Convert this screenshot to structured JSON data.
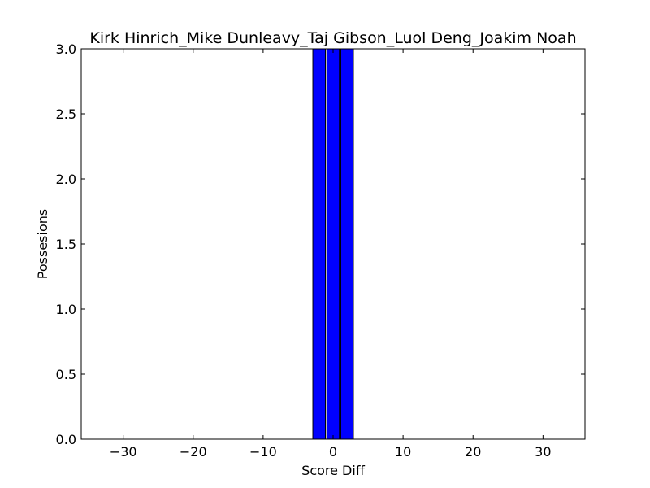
{
  "chart_data": {
    "type": "bar",
    "title": "Kirk Hinrich_Mike Dunleavy_Taj Gibson_Luol Deng_Joakim Noah",
    "xlabel": "Score Diff",
    "ylabel": "Possesions",
    "xlim": [
      -36,
      36
    ],
    "ylim": [
      0,
      3.0
    ],
    "bar_width": 1.8,
    "bar_color": "#0000ff",
    "edge_color": "#000000",
    "grid": false,
    "x_ticks": [
      -30,
      -20,
      -10,
      0,
      10,
      20,
      30
    ],
    "x_tick_labels": [
      "−30",
      "−20",
      "−10",
      "0",
      "10",
      "20",
      "30"
    ],
    "y_ticks": [
      0.0,
      0.5,
      1.0,
      1.5,
      2.0,
      2.5,
      3.0
    ],
    "y_tick_labels": [
      "0.0",
      "0.5",
      "1.0",
      "1.5",
      "2.0",
      "2.5",
      "3.0"
    ],
    "bars": [
      {
        "x": -35,
        "value": 0
      },
      {
        "x": -34,
        "value": 0
      },
      {
        "x": -33,
        "value": 0
      },
      {
        "x": -32,
        "value": 0
      },
      {
        "x": -31,
        "value": 0
      },
      {
        "x": -30,
        "value": 0
      },
      {
        "x": -29,
        "value": 0
      },
      {
        "x": -28,
        "value": 0
      },
      {
        "x": -27,
        "value": 0
      },
      {
        "x": -26,
        "value": 0
      },
      {
        "x": -25,
        "value": 0
      },
      {
        "x": -24,
        "value": 0
      },
      {
        "x": -23,
        "value": 0
      },
      {
        "x": -22,
        "value": 0
      },
      {
        "x": -21,
        "value": 0
      },
      {
        "x": -20,
        "value": 0
      },
      {
        "x": -19,
        "value": 0
      },
      {
        "x": -18,
        "value": 0
      },
      {
        "x": -17,
        "value": 0
      },
      {
        "x": -16,
        "value": 0
      },
      {
        "x": -15,
        "value": 0
      },
      {
        "x": -14,
        "value": 0
      },
      {
        "x": -13,
        "value": 0
      },
      {
        "x": -12,
        "value": 0
      },
      {
        "x": -11,
        "value": 0
      },
      {
        "x": -10,
        "value": 0
      },
      {
        "x": -9,
        "value": 0
      },
      {
        "x": -8,
        "value": 0
      },
      {
        "x": -7,
        "value": 0
      },
      {
        "x": -6,
        "value": 0
      },
      {
        "x": -5,
        "value": 0
      },
      {
        "x": -4,
        "value": 0
      },
      {
        "x": -3,
        "value": 0
      },
      {
        "x": -2,
        "value": 3
      },
      {
        "x": 0,
        "value": 3
      },
      {
        "x": 2,
        "value": 3
      },
      {
        "x": 4,
        "value": 0
      },
      {
        "x": 5,
        "value": 0
      },
      {
        "x": 6,
        "value": 0
      },
      {
        "x": 7,
        "value": 0
      },
      {
        "x": 8,
        "value": 0
      },
      {
        "x": 9,
        "value": 0
      },
      {
        "x": 10,
        "value": 0
      },
      {
        "x": 11,
        "value": 0
      },
      {
        "x": 12,
        "value": 0
      },
      {
        "x": 13,
        "value": 0
      },
      {
        "x": 14,
        "value": 0
      },
      {
        "x": 15,
        "value": 0
      },
      {
        "x": 16,
        "value": 0
      },
      {
        "x": 17,
        "value": 0
      },
      {
        "x": 18,
        "value": 0
      },
      {
        "x": 19,
        "value": 0
      },
      {
        "x": 20,
        "value": 0
      },
      {
        "x": 21,
        "value": 0
      },
      {
        "x": 22,
        "value": 0
      },
      {
        "x": 23,
        "value": 0
      },
      {
        "x": 24,
        "value": 0
      },
      {
        "x": 25,
        "value": 0
      },
      {
        "x": 26,
        "value": 0
      },
      {
        "x": 27,
        "value": 0
      },
      {
        "x": 28,
        "value": 0
      },
      {
        "x": 29,
        "value": 0
      },
      {
        "x": 30,
        "value": 0
      },
      {
        "x": 31,
        "value": 0
      },
      {
        "x": 32,
        "value": 0
      },
      {
        "x": 33,
        "value": 0
      },
      {
        "x": 34,
        "value": 0
      },
      {
        "x": 35,
        "value": 0
      }
    ]
  }
}
